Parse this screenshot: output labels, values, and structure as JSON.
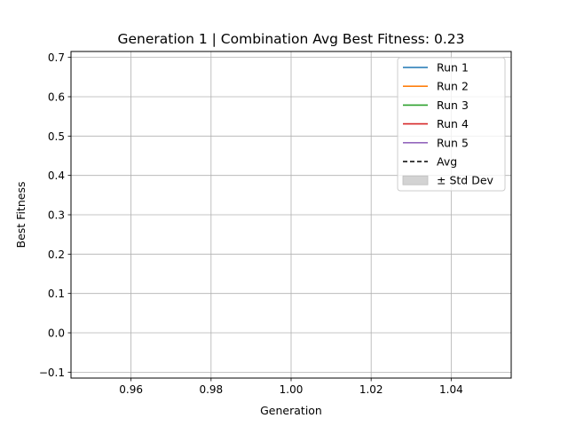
{
  "chart_data": {
    "type": "line",
    "title": "Generation 1 | Combination Avg Best Fitness: 0.23",
    "xlabel": "Generation",
    "ylabel": "Best Fitness",
    "xlim": [
      0.945,
      1.055
    ],
    "ylim": [
      -0.115,
      0.715
    ],
    "x_ticks": [
      "0.96",
      "0.98",
      "1.00",
      "1.02",
      "1.04"
    ],
    "x_tick_values": [
      0.96,
      0.98,
      1.0,
      1.02,
      1.04
    ],
    "y_ticks": [
      "−0.1",
      "0.0",
      "0.1",
      "0.2",
      "0.3",
      "0.4",
      "0.5",
      "0.6",
      "0.7"
    ],
    "y_tick_values": [
      -0.1,
      0.0,
      0.1,
      0.2,
      0.3,
      0.4,
      0.5,
      0.6,
      0.7
    ],
    "grid": true,
    "legend_position": "top-right",
    "series": [
      {
        "name": "Run 1",
        "color": "#1f77b4",
        "style": "solid",
        "x": [],
        "y": []
      },
      {
        "name": "Run 2",
        "color": "#ff7f0e",
        "style": "solid",
        "x": [],
        "y": []
      },
      {
        "name": "Run 3",
        "color": "#2ca02c",
        "style": "solid",
        "x": [],
        "y": []
      },
      {
        "name": "Run 4",
        "color": "#d62728",
        "style": "solid",
        "x": [],
        "y": []
      },
      {
        "name": "Run 5",
        "color": "#9467bd",
        "style": "solid",
        "x": [],
        "y": []
      },
      {
        "name": "Avg",
        "color": "#000000",
        "style": "dashed",
        "x": [],
        "y": []
      },
      {
        "name": "± Std Dev",
        "color": "#d3d3d3",
        "style": "band",
        "x": [],
        "y": []
      }
    ]
  }
}
